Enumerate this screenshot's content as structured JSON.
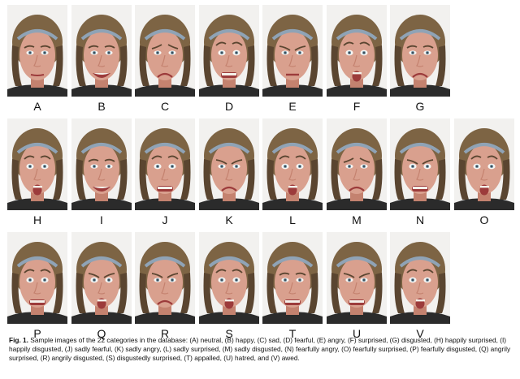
{
  "caption": {
    "label": "Fig. 1.",
    "text": "Sample images of the 22 categories in the database: (A) neutral, (B) happy, (C) sad, (D) fearful, (E) angry, (F) surprised, (G) disgusted, (H) happily surprised, (I) happily disgusted, (J) sadly fearful, (K) sadly angry, (L) sadly surprised, (M) sadly disgusted, (N) fearfully angry, (O) fearfully surprised, (P) fearfully disgusted, (Q) angrily surprised, (R) angrily disgusted, (S) disgustedly surprised, (T) appalled, (U) hatred, and (V) awed."
  },
  "rows": [
    [
      {
        "letter": "A",
        "expression": "neutral"
      },
      {
        "letter": "B",
        "expression": "happy"
      },
      {
        "letter": "C",
        "expression": "sad"
      },
      {
        "letter": "D",
        "expression": "fearful"
      },
      {
        "letter": "E",
        "expression": "angry"
      },
      {
        "letter": "F",
        "expression": "surprised"
      },
      {
        "letter": "G",
        "expression": "disgusted"
      }
    ],
    [
      {
        "letter": "H",
        "expression": "happily surprised"
      },
      {
        "letter": "I",
        "expression": "happily disgusted"
      },
      {
        "letter": "J",
        "expression": "sadly fearful"
      },
      {
        "letter": "K",
        "expression": "sadly angry"
      },
      {
        "letter": "L",
        "expression": "sadly surprised"
      },
      {
        "letter": "M",
        "expression": "sadly disgusted"
      },
      {
        "letter": "N",
        "expression": "fearfully angry"
      },
      {
        "letter": "O",
        "expression": "fearfully surprised"
      }
    ],
    [
      {
        "letter": "P",
        "expression": "fearfully disgusted"
      },
      {
        "letter": "Q",
        "expression": "angrily surprised"
      },
      {
        "letter": "R",
        "expression": "angrily disgusted"
      },
      {
        "letter": "S",
        "expression": "disgustedly surprised"
      },
      {
        "letter": "T",
        "expression": "appalled"
      },
      {
        "letter": "U",
        "expression": "hatred"
      },
      {
        "letter": "V",
        "expression": "awed"
      }
    ]
  ],
  "colors": {
    "background": "#f2f1ef",
    "skin": "#d9a08e",
    "skin_shadow": "#c4826f",
    "hair": "#7d6444",
    "hair_dark": "#5a4530",
    "headband": "#8fa3b6",
    "shirt": "#2b2b2b",
    "mouth": "#9c3b3b",
    "teeth": "#f4f1ea",
    "eye": "#f7f5f2",
    "iris": "#6c8fa3"
  }
}
